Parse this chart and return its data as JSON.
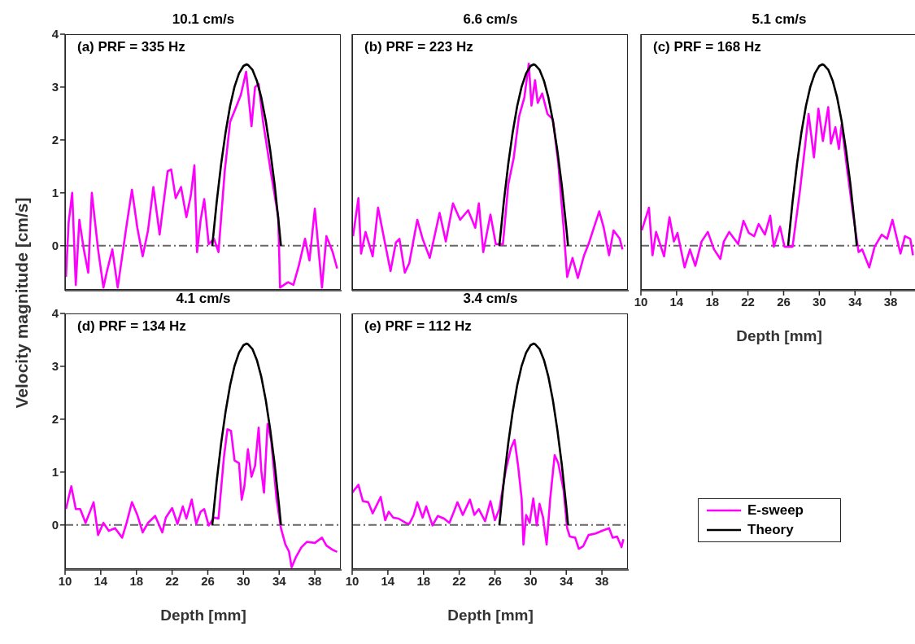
{
  "chart_data": [
    {
      "type": "line",
      "title": "10.1 cm/s",
      "ylabel": "Velocity magnitude [cm/s]",
      "annotations": [
        "(a) PRF = 335 Hz"
      ],
      "xlim": [
        10,
        41
      ],
      "xticks": [
        10,
        14,
        18,
        22,
        26,
        30,
        34,
        38
      ],
      "ylim": [
        -0.85,
        4
      ],
      "yticks": [
        0,
        1,
        2,
        3,
        4
      ],
      "tick_labels": "y",
      "grid": false,
      "ref_lines": [
        {
          "axis": "y",
          "value": 0,
          "color": "#666666",
          "line_style": "dashdot"
        }
      ],
      "series": [
        {
          "color": "#ff00ff",
          "x": [
            10.1,
            10.4,
            10.8,
            11.2,
            11.6,
            12.1,
            12.6,
            13.0,
            13.7,
            14.3,
            14.7,
            15.3,
            15.9,
            16.9,
            17.5,
            18.1,
            18.7,
            19.3,
            19.9,
            20.6,
            20.9,
            21.5,
            21.9,
            22.4,
            23.0,
            23.6,
            24.1,
            24.5,
            24.8,
            25.2,
            25.6,
            26.1,
            26.7,
            27.2,
            27.9,
            28.5,
            29.1,
            29.7,
            30.3,
            30.9,
            31.3,
            31.7,
            32.2,
            33.1,
            33.9,
            34.1,
            35.0,
            35.6,
            36.2,
            36.9,
            37.4,
            38.0,
            38.8,
            39.3,
            40.0,
            40.5
          ],
          "values": [
            -0.59,
            0.44,
            1.0,
            -0.74,
            0.49,
            -0.07,
            -0.51,
            1.0,
            -0.07,
            -0.79,
            -0.48,
            -0.07,
            -0.79,
            0.39,
            1.06,
            0.34,
            -0.2,
            0.29,
            1.11,
            0.21,
            0.62,
            1.41,
            1.44,
            0.9,
            1.11,
            0.54,
            0.95,
            1.52,
            -0.12,
            0.49,
            0.88,
            0.03,
            0.13,
            -0.12,
            1.41,
            2.34,
            2.59,
            2.85,
            3.29,
            2.26,
            3.0,
            3.06,
            2.34,
            1.36,
            0.54,
            -0.79,
            -0.69,
            -0.74,
            -0.38,
            0.13,
            -0.28,
            0.7,
            -0.79,
            0.18,
            -0.12,
            -0.43
          ]
        },
        {
          "color": "#000000",
          "x": [
            26.5,
            27,
            27.5,
            28,
            28.5,
            29,
            29.5,
            30,
            30.35,
            30.5,
            31,
            31.5,
            32,
            32.5,
            33,
            33.5,
            34,
            34.2
          ],
          "values": [
            0,
            0.83,
            1.55,
            2.15,
            2.64,
            3.01,
            3.26,
            3.4,
            3.43,
            3.42,
            3.33,
            3.12,
            2.8,
            2.36,
            1.8,
            1.14,
            0.35,
            0
          ]
        }
      ]
    },
    {
      "type": "line",
      "title": "6.6 cm/s",
      "annotations": [
        "(b) PRF = 223 Hz"
      ],
      "xlim": [
        10,
        41
      ],
      "xticks": [
        10,
        14,
        18,
        22,
        26,
        30,
        34,
        38
      ],
      "ylim": [
        -0.85,
        4
      ],
      "yticks": [
        0,
        1,
        2,
        3,
        4
      ],
      "tick_labels": false,
      "grid": false,
      "ref_lines": [
        {
          "axis": "y",
          "value": 0,
          "color": "#666666",
          "line_style": "dashdot"
        }
      ],
      "series": [
        {
          "color": "#ff00ff",
          "x": [
            10.1,
            10.7,
            11.0,
            11.5,
            12.3,
            12.9,
            13.7,
            14.3,
            14.9,
            15.3,
            15.9,
            16.4,
            17.3,
            17.9,
            18.7,
            19.8,
            20.5,
            21.3,
            22.1,
            23.0,
            23.8,
            24.2,
            24.7,
            25.5,
            26.1,
            26.9,
            27.5,
            28.1,
            28.7,
            29.3,
            29.8,
            30.1,
            30.5,
            30.8,
            31.3,
            31.9,
            32.5,
            33.1,
            33.7,
            34.1,
            34.7,
            35.3,
            36.0,
            36.5,
            37.0,
            37.7,
            38.2,
            38.8,
            39.3,
            40.0,
            40.3
          ],
          "values": [
            0.18,
            0.9,
            -0.15,
            0.26,
            -0.2,
            0.72,
            0.03,
            -0.48,
            0.06,
            0.13,
            -0.51,
            -0.33,
            0.49,
            0.13,
            -0.23,
            0.62,
            0.08,
            0.8,
            0.49,
            0.67,
            0.34,
            0.8,
            -0.12,
            0.59,
            0.03,
            0.03,
            1.16,
            1.65,
            2.44,
            2.8,
            3.44,
            2.65,
            3.13,
            2.7,
            2.88,
            2.49,
            2.39,
            1.57,
            0.34,
            -0.59,
            -0.23,
            -0.61,
            -0.18,
            0.03,
            0.29,
            0.65,
            0.34,
            -0.18,
            0.29,
            0.13,
            -0.07
          ]
        },
        {
          "color": "#000000",
          "x": [
            26.5,
            27,
            27.5,
            28,
            28.5,
            29,
            29.5,
            30,
            30.35,
            30.5,
            31,
            31.5,
            32,
            32.5,
            33,
            33.5,
            34,
            34.2
          ],
          "values": [
            0,
            0.83,
            1.55,
            2.15,
            2.64,
            3.01,
            3.26,
            3.4,
            3.43,
            3.42,
            3.33,
            3.12,
            2.8,
            2.36,
            1.8,
            1.14,
            0.35,
            0
          ]
        }
      ]
    },
    {
      "type": "line",
      "title": "5.1 cm/s",
      "xlabel": "Depth [mm]",
      "annotations": [
        "(c) PRF = 168 Hz"
      ],
      "xlim": [
        10,
        41
      ],
      "xticks": [
        10,
        14,
        18,
        22,
        26,
        30,
        34,
        38
      ],
      "ylim": [
        -0.85,
        4
      ],
      "yticks": [
        0,
        1,
        2,
        3,
        4
      ],
      "tick_labels": "x",
      "grid": false,
      "ref_lines": [
        {
          "axis": "y",
          "value": 0,
          "color": "#666666",
          "line_style": "dashdot"
        }
      ],
      "series": [
        {
          "color": "#ff00ff",
          "x": [
            10.1,
            10.9,
            11.3,
            11.7,
            12.6,
            13.2,
            13.7,
            14.1,
            14.9,
            15.5,
            16.1,
            16.8,
            17.5,
            18.2,
            18.9,
            19.3,
            19.9,
            20.9,
            21.5,
            22.1,
            22.7,
            23.2,
            23.9,
            24.5,
            24.9,
            25.6,
            26.1,
            27.0,
            27.8,
            28.4,
            28.8,
            29.4,
            29.9,
            30.4,
            31.0,
            31.3,
            31.8,
            32.2,
            32.5,
            33.1,
            33.7,
            34.4,
            34.8,
            35.6,
            36.2,
            37.0,
            37.6,
            38.2,
            39.1,
            39.6,
            40.2,
            40.5
          ],
          "values": [
            0.29,
            0.72,
            -0.18,
            0.26,
            -0.2,
            0.54,
            0.08,
            0.24,
            -0.41,
            -0.07,
            -0.38,
            0.08,
            0.26,
            -0.07,
            -0.25,
            0.08,
            0.26,
            0.03,
            0.47,
            0.24,
            0.18,
            0.41,
            0.21,
            0.57,
            -0.02,
            0.36,
            -0.02,
            -0.02,
            1.0,
            1.88,
            2.49,
            1.67,
            2.59,
            1.98,
            2.62,
            1.93,
            2.24,
            1.83,
            2.29,
            1.47,
            0.7,
            -0.12,
            -0.07,
            -0.41,
            -0.02,
            0.21,
            0.13,
            0.49,
            -0.15,
            0.18,
            0.13,
            -0.18
          ]
        },
        {
          "color": "#000000",
          "x": [
            26.5,
            27,
            27.5,
            28,
            28.5,
            29,
            29.5,
            30,
            30.35,
            30.5,
            31,
            31.5,
            32,
            32.5,
            33,
            33.5,
            34,
            34.2
          ],
          "values": [
            0,
            0.83,
            1.55,
            2.15,
            2.64,
            3.01,
            3.26,
            3.4,
            3.43,
            3.42,
            3.33,
            3.12,
            2.8,
            2.36,
            1.8,
            1.14,
            0.35,
            0
          ]
        }
      ]
    },
    {
      "type": "line",
      "title": "4.1 cm/s",
      "xlabel": "Depth [mm]",
      "annotations": [
        "(d) PRF = 134 Hz"
      ],
      "xlim": [
        10,
        41
      ],
      "xticks": [
        10,
        14,
        18,
        22,
        26,
        30,
        34,
        38
      ],
      "ylim": [
        -0.85,
        4
      ],
      "yticks": [
        0,
        1,
        2,
        3,
        4
      ],
      "grid": false,
      "ref_lines": [
        {
          "axis": "y",
          "value": 0,
          "color": "#666666",
          "line_style": "dashdot"
        }
      ],
      "series": [
        {
          "color": "#ff00ff",
          "x": [
            10.1,
            10.7,
            11.2,
            11.7,
            12.3,
            13.2,
            13.7,
            14.3,
            14.9,
            15.6,
            16.4,
            16.9,
            17.5,
            18.1,
            18.7,
            19.3,
            20.1,
            20.9,
            21.3,
            22.0,
            22.6,
            23.2,
            23.6,
            24.2,
            24.7,
            25.2,
            25.6,
            26.1,
            26.7,
            27.2,
            27.8,
            28.2,
            28.6,
            29.0,
            29.5,
            29.8,
            30.1,
            30.5,
            30.9,
            31.3,
            31.7,
            32.0,
            32.3,
            32.7,
            33.1,
            33.7,
            34.2,
            34.7,
            35.1,
            35.4,
            35.9,
            36.5,
            37.1,
            38.0,
            38.8,
            39.3,
            40.0,
            40.5
          ],
          "values": [
            0.3,
            0.73,
            0.3,
            0.3,
            0.04,
            0.43,
            -0.19,
            0.04,
            -0.11,
            -0.06,
            -0.24,
            0.04,
            0.43,
            0.19,
            -0.14,
            0.04,
            0.17,
            -0.14,
            0.14,
            0.32,
            0.02,
            0.35,
            0.12,
            0.48,
            0.02,
            0.25,
            0.3,
            -0.01,
            0.14,
            0.12,
            1.27,
            1.81,
            1.78,
            1.22,
            1.17,
            0.48,
            0.73,
            1.43,
            0.91,
            1.12,
            1.84,
            1.02,
            0.61,
            1.91,
            1.61,
            0.5,
            -0.06,
            -0.37,
            -0.5,
            -0.8,
            -0.6,
            -0.42,
            -0.32,
            -0.34,
            -0.24,
            -0.39,
            -0.47,
            -0.51
          ]
        },
        {
          "color": "#000000",
          "x": [
            26.5,
            27,
            27.5,
            28,
            28.5,
            29,
            29.5,
            30,
            30.35,
            30.5,
            31,
            31.5,
            32,
            32.5,
            33,
            33.5,
            34,
            34.2
          ],
          "values": [
            0,
            0.83,
            1.55,
            2.15,
            2.64,
            3.01,
            3.26,
            3.4,
            3.43,
            3.42,
            3.33,
            3.12,
            2.8,
            2.36,
            1.8,
            1.14,
            0.35,
            0
          ]
        }
      ]
    },
    {
      "type": "line",
      "title": "3.4 cm/s",
      "xlabel": "Depth [mm]",
      "annotations": [
        "(e) PRF = 112 Hz"
      ],
      "xlim": [
        10,
        41
      ],
      "xticks": [
        10,
        14,
        18,
        22,
        26,
        30,
        34,
        38
      ],
      "ylim": [
        -0.85,
        4
      ],
      "yticks": [
        0,
        1,
        2,
        3,
        4
      ],
      "tick_labels": "x",
      "grid": false,
      "legend": "right",
      "ref_lines": [
        {
          "axis": "y",
          "value": 0,
          "color": "#666666",
          "line_style": "dashdot"
        }
      ],
      "series": [
        {
          "name": "E-sweep",
          "color": "#ff00ff",
          "x": [
            10.0,
            10.7,
            11.2,
            11.8,
            12.3,
            13.2,
            13.7,
            14.1,
            14.6,
            15.2,
            16.0,
            16.4,
            16.9,
            17.3,
            17.9,
            18.3,
            19.0,
            19.6,
            20.3,
            20.9,
            21.4,
            21.8,
            22.4,
            23.2,
            23.7,
            24.2,
            24.9,
            25.5,
            26.0,
            26.5,
            27.2,
            27.8,
            28.2,
            28.6,
            29.0,
            29.2,
            29.5,
            29.9,
            30.3,
            30.7,
            31.0,
            31.4,
            31.8,
            32.2,
            32.7,
            33.1,
            33.7,
            34.1,
            34.4,
            35.0,
            35.4,
            35.9,
            36.5,
            37.3,
            38.0,
            38.8,
            39.2,
            39.7,
            40.2,
            40.4
          ],
          "values": [
            0.61,
            0.76,
            0.45,
            0.43,
            0.22,
            0.53,
            0.09,
            0.25,
            0.14,
            0.12,
            0.04,
            0.02,
            0.19,
            0.43,
            0.14,
            0.35,
            -0.01,
            0.17,
            0.12,
            0.04,
            0.25,
            0.43,
            0.19,
            0.48,
            0.19,
            0.3,
            0.07,
            0.45,
            0.09,
            0.3,
            1.02,
            1.45,
            1.61,
            1.12,
            0.5,
            -0.37,
            0.19,
            0.04,
            0.5,
            -0.01,
            0.4,
            0.14,
            -0.37,
            0.5,
            1.32,
            1.17,
            0.66,
            -0.06,
            -0.22,
            -0.24,
            -0.45,
            -0.4,
            -0.19,
            -0.16,
            -0.11,
            -0.06,
            -0.24,
            -0.22,
            -0.42,
            -0.27
          ]
        },
        {
          "name": "Theory",
          "color": "#000000",
          "x": [
            26.5,
            27,
            27.5,
            28,
            28.5,
            29,
            29.5,
            30,
            30.35,
            30.5,
            31,
            31.5,
            32,
            32.5,
            33,
            33.5,
            34,
            34.2
          ],
          "values": [
            0,
            0.83,
            1.55,
            2.15,
            2.64,
            3.01,
            3.26,
            3.4,
            3.43,
            3.42,
            3.33,
            3.12,
            2.8,
            2.36,
            1.8,
            1.14,
            0.35,
            0
          ]
        }
      ]
    }
  ]
}
